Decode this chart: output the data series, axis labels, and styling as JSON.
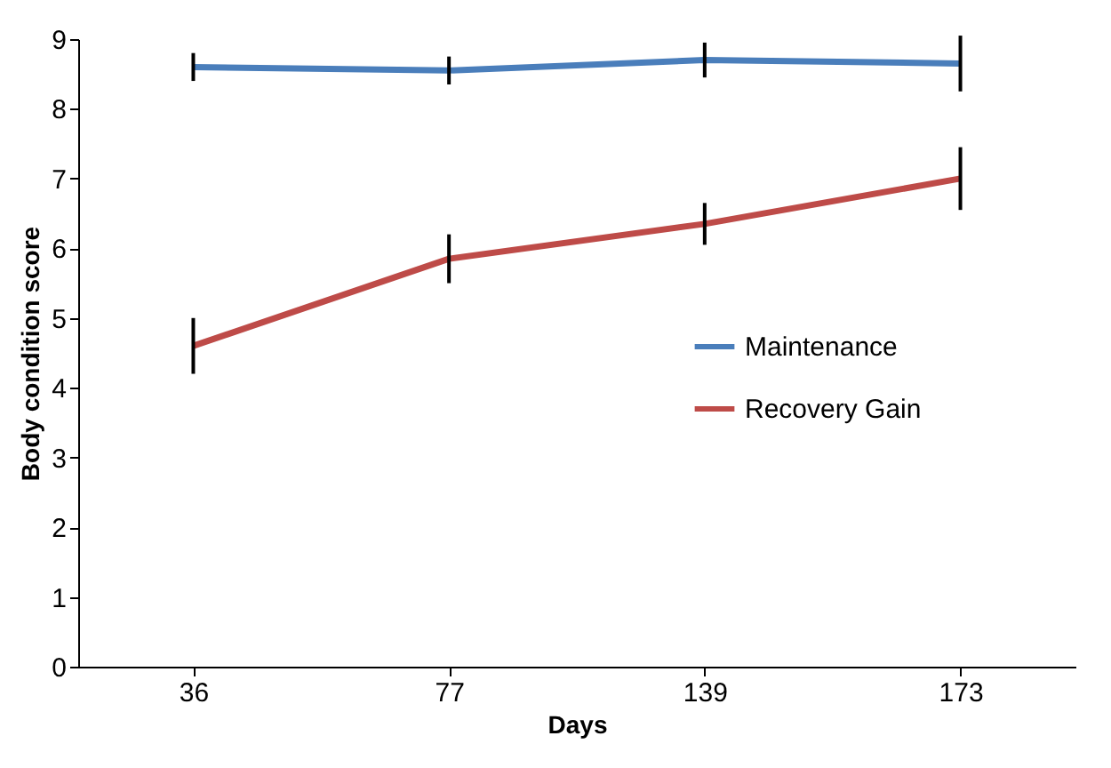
{
  "chart_data": {
    "type": "line",
    "xlabel": "Days",
    "ylabel": "Body condition score",
    "categories": [
      "36",
      "77",
      "139",
      "173"
    ],
    "series": [
      {
        "name": "Maintenance",
        "color": "#4a7ebb",
        "values": [
          8.6,
          8.55,
          8.7,
          8.65
        ],
        "errors": [
          0.2,
          0.2,
          0.25,
          0.4
        ]
      },
      {
        "name": "Recovery Gain",
        "color": "#be4b48",
        "values": [
          4.6,
          5.85,
          6.35,
          7.0
        ],
        "errors": [
          0.4,
          0.35,
          0.3,
          0.45
        ]
      }
    ],
    "ylim": [
      0,
      9
    ],
    "yticks": [
      0,
      1,
      2,
      3,
      4,
      5,
      6,
      7,
      8,
      9
    ],
    "grid": false,
    "legend": "right",
    "marker": "none",
    "line_style": "solid"
  }
}
